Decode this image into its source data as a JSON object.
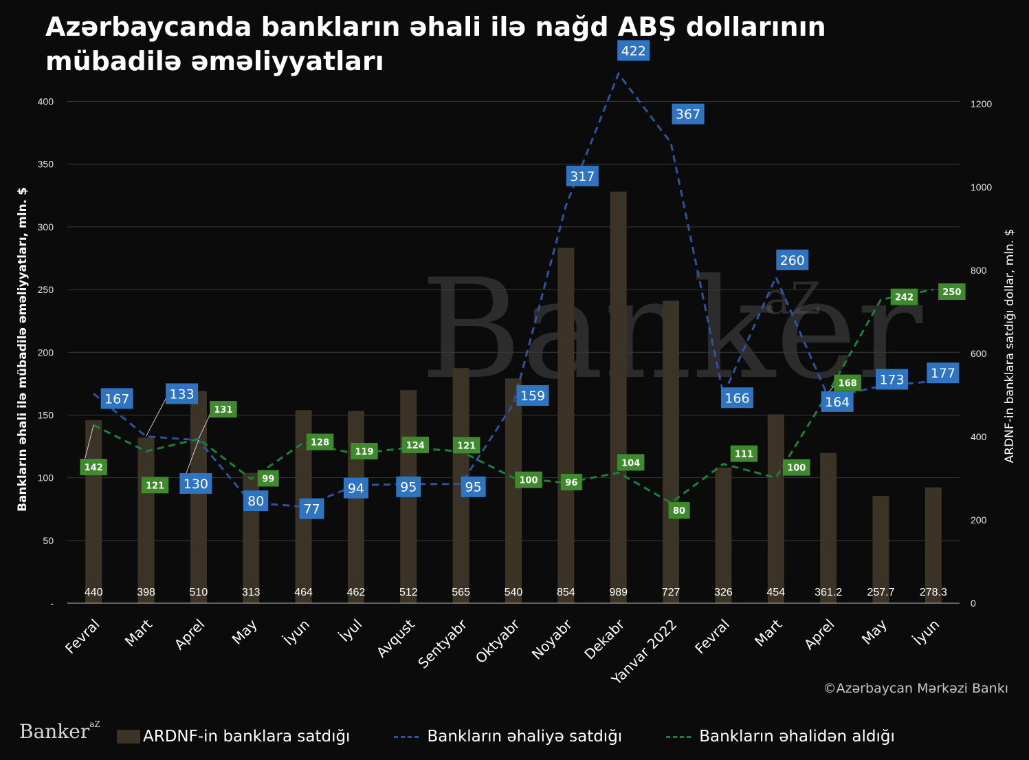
{
  "title": "Azərbaycanda bankların əhali ilə nağd ABŞ dollarının mübadilə əməliyyatları",
  "source": "©Azərbaycan Mərkəzi Bankı",
  "logo": {
    "text": "Banker",
    "sup": "aZ"
  },
  "watermark": {
    "text": "Banker",
    "sup": "aZ"
  },
  "colors": {
    "background": "#0b0b0b",
    "bar": "#3b3426",
    "blue_line": "#2e52a0",
    "blue_label": "#2f74c0",
    "green_line": "#17823a",
    "green_label": "#3f8a2c",
    "grid": "#3a3a3a"
  },
  "chart_data": {
    "type": "bar+line",
    "categories": [
      "Fevral",
      "Mart",
      "Aprel",
      "May",
      "İyun",
      "İyul",
      "Avqust",
      "Sentyabr",
      "Oktyabr",
      "Noyabr",
      "Dekabr",
      "Yanvar 2022",
      "Fevral",
      "Mart",
      "Aprel",
      "May",
      "İyun"
    ],
    "ylabel_left": "Bankların əhali ilə mübadilə əməliyyatları, mln. $",
    "ylabel_right": "ARDNF-in banklara satdığı dollar, mln. $",
    "yleft_ticks": [
      "-",
      "50",
      "100",
      "150",
      "200",
      "250",
      "300",
      "350",
      "400"
    ],
    "yleft_lim": [
      0,
      400
    ],
    "yright_ticks": [
      "0",
      "200",
      "400",
      "600",
      "800",
      "1000",
      "1200"
    ],
    "yright_lim": [
      0,
      1200
    ],
    "grid": true,
    "legend_position": "bottom",
    "series": [
      {
        "name": "ARDNF-in  banklara satdığı",
        "type": "bar",
        "axis": "right",
        "values": [
          440,
          398,
          510,
          313,
          464,
          462,
          512,
          565,
          540,
          854,
          989,
          727,
          326,
          454,
          361.2,
          257.7,
          278.3
        ],
        "labels": [
          "440",
          "398",
          "510",
          "313",
          "464",
          "462",
          "512",
          "565",
          "540",
          "854",
          "989",
          "727",
          "326",
          "454",
          "361.2",
          "257.7",
          "278.3"
        ]
      },
      {
        "name": "Bankların əhaliyə satdığı",
        "type": "line",
        "style": "dashed",
        "axis": "left",
        "values": [
          167,
          133,
          130,
          80,
          77,
          94,
          95,
          95,
          159,
          317,
          422,
          367,
          166,
          260,
          164,
          173,
          177
        ],
        "labels": [
          "167",
          "133",
          "130",
          "80",
          "77",
          "94",
          "95",
          "95",
          "159",
          "317",
          "422",
          "367",
          "166",
          "260",
          "164",
          "173",
          "177"
        ]
      },
      {
        "name": "Bankların əhalidən aldığı",
        "type": "line",
        "style": "dashed",
        "axis": "left",
        "values": [
          142,
          121,
          131,
          99,
          128,
          119,
          124,
          121,
          100,
          96,
          104,
          80,
          111,
          100,
          168,
          242,
          250
        ],
        "labels": [
          "142",
          "121",
          "131",
          "99",
          "128",
          "119",
          "124",
          "121",
          "100",
          "96",
          "104",
          "80",
          "111",
          "100",
          "168",
          "242",
          "250"
        ]
      }
    ]
  }
}
